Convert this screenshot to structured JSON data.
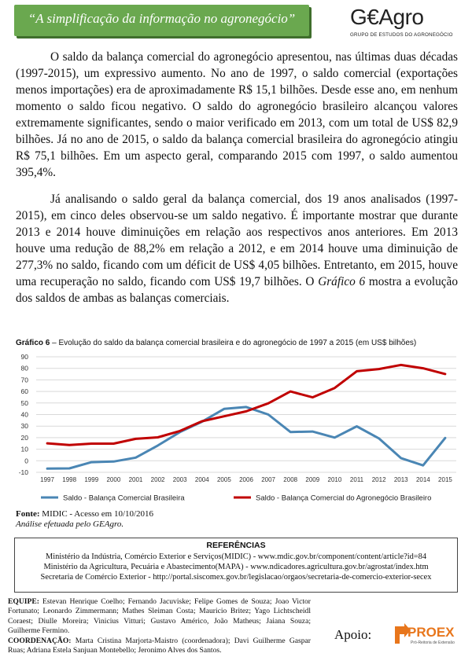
{
  "header": {
    "banner_text": "“A simplificação da informação no agronegócio”",
    "logo_text": "G€Agro",
    "logo_subtitle": "GRUPO DE ESTUDOS DO AGRONEGÓCIO"
  },
  "paragraphs": {
    "p1": "O saldo da balança comercial do agronegócio apresentou, nas últimas duas décadas (1997-2015), um expressivo aumento. No ano de 1997, o saldo comercial (exportações menos importações) era de aproximadamente R$ 15,1 bilhões. Desde esse ano, em nenhum momento o saldo ficou negativo. O saldo do agronegócio brasileiro alcançou valores extremamente significantes, sendo o maior verificado em 2013, com um total de US$ 82,9 bilhões. Já no ano de 2015, o saldo da balança comercial brasileira do agronegócio atingiu R$ 75,1 bilhões. Em um aspecto geral, comparando 2015 com 1997, o saldo aumentou 395,4%.",
    "p2_before": "Já analisando o saldo geral da balança comercial, dos 19 anos analisados (1997-2015), em cinco deles observou-se um saldo negativo. É importante mostrar que durante 2013 e 2014 houve diminuições em relação aos respectivos anos anteriores. Em 2013 houve uma redução de 88,2% em relação a 2012, e em 2014 houve uma diminuição de 277,3% no saldo, ficando com um déficit de US$ 4,05 bilhões. Entretanto, em 2015, houve uma recuperação no saldo, ficando com US$ 19,7 bilhões. O ",
    "p2_italic": "Gráfico 6",
    "p2_after": " mostra a evolução dos saldos de ambas as balanças comerciais."
  },
  "chart_caption": {
    "label": "Gráfico 6",
    "text": " – Evolução do saldo da balança comercial brasileira e do agronegócio de 1997 a 2015 (em US$ bilhões)"
  },
  "chart_data": {
    "type": "line",
    "title": "Gráfico 6 – Evolução do saldo da balança comercial brasileira e do agronegócio de 1997 a 2015 (em US$ bilhões)",
    "x": [
      "1997",
      "1998",
      "1999",
      "2000",
      "2001",
      "2002",
      "2003",
      "2004",
      "2005",
      "2006",
      "2007",
      "2008",
      "2009",
      "2010",
      "2011",
      "2012",
      "2013",
      "2014",
      "2015"
    ],
    "ylim": [
      -10,
      90
    ],
    "yticks": [
      -10,
      0,
      10,
      20,
      30,
      40,
      50,
      60,
      70,
      80,
      90
    ],
    "grid": true,
    "legend_position": "bottom",
    "series": [
      {
        "name": "Saldo - Balança Comercial Brasileira",
        "color": "#4a86b4",
        "values": [
          -6.8,
          -6.6,
          -1.2,
          -0.7,
          2.7,
          13.2,
          24.8,
          33.8,
          44.9,
          46.5,
          40.0,
          24.9,
          25.3,
          20.1,
          29.8,
          19.4,
          2.3,
          -4.0,
          19.7
        ]
      },
      {
        "name": "Saldo - Balança Comercial do Agronegócio Brasileiro",
        "color": "#c00000",
        "values": [
          15.1,
          13.7,
          14.8,
          14.8,
          19.0,
          20.3,
          25.8,
          34.2,
          38.5,
          42.8,
          49.7,
          60.0,
          54.9,
          63.0,
          77.5,
          79.4,
          82.9,
          80.1,
          75.1
        ]
      }
    ]
  },
  "source": {
    "label": "Fonte:",
    "text": " MIDIC - Acesso em 10/10/2016",
    "analysis": "Análise efetuada pelo GEAgro."
  },
  "references": {
    "title": "REFERÊNCIAS",
    "lines": [
      "Ministério da Indústria, Comércio Exterior e Serviços(MIDIC) - www.mdic.gov.br/component/content/article?id=84",
      "Ministério da Agricultura, Pecuária e Abastecimento(MAPA) - www.ndicadores.agricultura.gov.br/agrostat/index.htm",
      "Secretaria de Comércio Exterior - http://portal.siscomex.gov.br/legislacao/orgaos/secretaria-de-comercio-exterior-secex"
    ]
  },
  "team": {
    "equipe_label": "EQUIPE:",
    "equipe_text": " Estevan Henrique Coelho; Fernando Jacuviske; Felipe Gomes de Souza; Joao Victor Fortunato; Leonardo Zimmermann; Mathes Sleiman Costa; Mauricio Britez; Yago Lichtscheidl Coraest; Diulle Moreira; Vinicius Vitturi; Gustavo Américo, João Matheus; Jaiana Souza; Guilherme Fermino.",
    "coord_label": "COORDENAÇÃO:",
    "coord_text": " Marta Cristina Marjorta-Maistro (coordenadora); Davi Guilherme Gaspar Ruas; Adriana Estela Sanjuan Montebello; Jeronimo Alves dos Santos."
  },
  "support": {
    "label": "Apoio:",
    "logo_text": "PROEX",
    "logo_subtitle": "Pró-Reitoria de Extensão",
    "logo_color": "#e8761c"
  }
}
